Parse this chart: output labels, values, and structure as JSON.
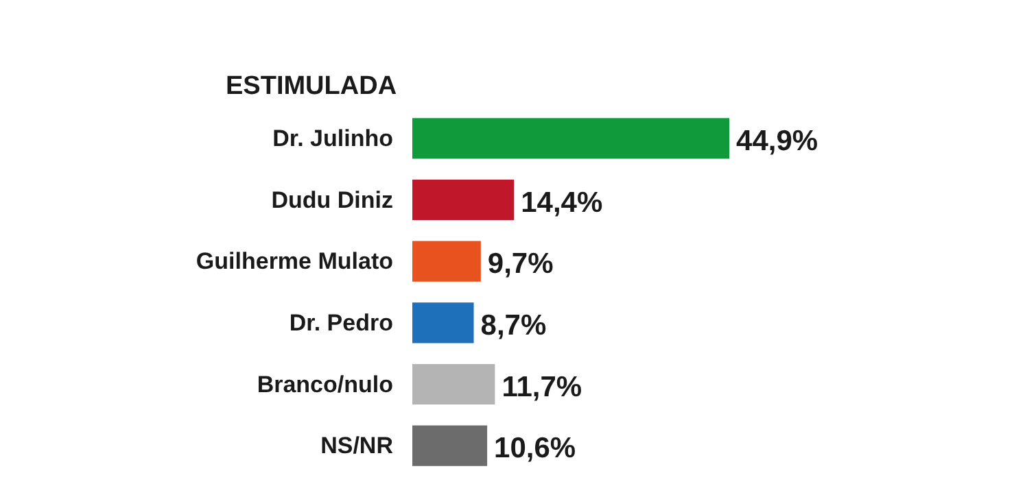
{
  "chart_data": {
    "type": "bar",
    "orientation": "horizontal",
    "title": "ESTIMULADA",
    "categories": [
      "Dr. Julinho",
      "Dudu Diniz",
      "Guilherme Mulato",
      "Dr. Pedro",
      "Branco/nulo",
      "NS/NR"
    ],
    "values": [
      44.9,
      14.4,
      9.7,
      8.7,
      11.7,
      10.6
    ],
    "colors": [
      "#109a3c",
      "#c0172b",
      "#e8521f",
      "#1f70bb",
      "#b4b4b4",
      "#6c6c6c"
    ],
    "value_labels": [
      "44,9%",
      "14,4%",
      "9,7%",
      "8,7%",
      "11,7%",
      "10,6%"
    ],
    "grid": false
  }
}
